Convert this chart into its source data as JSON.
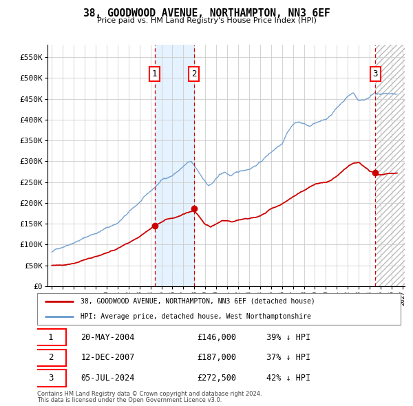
{
  "title": "38, GOODWOOD AVENUE, NORTHAMPTON, NN3 6EF",
  "subtitle": "Price paid vs. HM Land Registry's House Price Index (HPI)",
  "footnote1": "Contains HM Land Registry data © Crown copyright and database right 2024.",
  "footnote2": "This data is licensed under the Open Government Licence v3.0.",
  "legend_line1": "38, GOODWOOD AVENUE, NORTHAMPTON, NN3 6EF (detached house)",
  "legend_line2": "HPI: Average price, detached house, West Northamptonshire",
  "transaction_label": "20-MAY-2004",
  "transaction_label2": "12-DEC-2007",
  "transaction_label3": "05-JUL-2024",
  "t1_price": "£146,000",
  "t1_hpi": "39% ↓ HPI",
  "t2_price": "£187,000",
  "t2_hpi": "37% ↓ HPI",
  "t3_price": "£272,500",
  "t3_hpi": "42% ↓ HPI",
  "ylim": [
    0,
    580000
  ],
  "yticks": [
    0,
    50000,
    100000,
    150000,
    200000,
    250000,
    300000,
    350000,
    400000,
    450000,
    500000,
    550000
  ],
  "ytick_labels": [
    "£0",
    "£50K",
    "£100K",
    "£150K",
    "£200K",
    "£250K",
    "£300K",
    "£350K",
    "£400K",
    "£450K",
    "£500K",
    "£550K"
  ],
  "hpi_color": "#6699cc",
  "price_color": "#cc0000",
  "bg_color": "#ffffff",
  "grid_color": "#cccccc",
  "transaction1_x": 2004.38,
  "transaction2_x": 2007.95,
  "transaction3_x": 2024.51,
  "transaction1_y": 146000,
  "transaction2_y": 187000,
  "transaction3_y": 272500,
  "shade_x1": 2004.38,
  "shade_x2": 2007.95,
  "hatch_x1": 2024.51,
  "hatch_x2": 2027.2,
  "xmin": 1994.6,
  "xmax": 2027.2
}
